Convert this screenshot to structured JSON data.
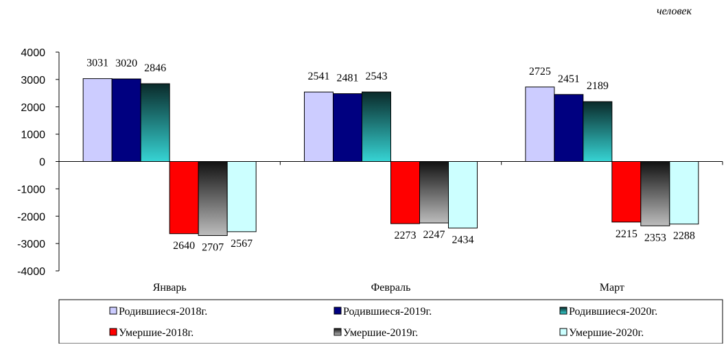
{
  "unit_label": "человек",
  "chart_data": {
    "type": "bar",
    "categories": [
      "Январь",
      "Февраль",
      "Март"
    ],
    "ylim": [
      -4000,
      4000
    ],
    "yticks": [
      4000,
      3000,
      2000,
      1000,
      0,
      -1000,
      -2000,
      -3000,
      -4000
    ],
    "grid": false,
    "legend_position": "bottom",
    "series": [
      {
        "name": "Родившиеся-2018г.",
        "values": [
          3031,
          2541,
          2725
        ],
        "labels": [
          "3031",
          "2541",
          "2725"
        ],
        "color": "#ccccff"
      },
      {
        "name": "Родившиеся-2019г.",
        "values": [
          3020,
          2481,
          2451
        ],
        "labels": [
          "3020",
          "2481",
          "2451"
        ],
        "color": "#000080"
      },
      {
        "name": "Родившиеся-2020г.",
        "values": [
          2846,
          2543,
          2189
        ],
        "labels": [
          "2846",
          "2543",
          "2189"
        ],
        "color": "#2ec4c4"
      },
      {
        "name": "Умершие-2018г.",
        "values": [
          -2640,
          -2273,
          -2215
        ],
        "labels": [
          "2640",
          "2273",
          "2215"
        ],
        "color": "#ff0000"
      },
      {
        "name": "Умершие-2019г.",
        "values": [
          -2707,
          -2247,
          -2353
        ],
        "labels": [
          "2707",
          "2247",
          "2353"
        ],
        "color": "#8c8c8c"
      },
      {
        "name": "Умершие-2020г.",
        "values": [
          -2567,
          -2434,
          -2288
        ],
        "labels": [
          "2567",
          "2434",
          "2288"
        ],
        "color": "#ccffff"
      }
    ]
  }
}
